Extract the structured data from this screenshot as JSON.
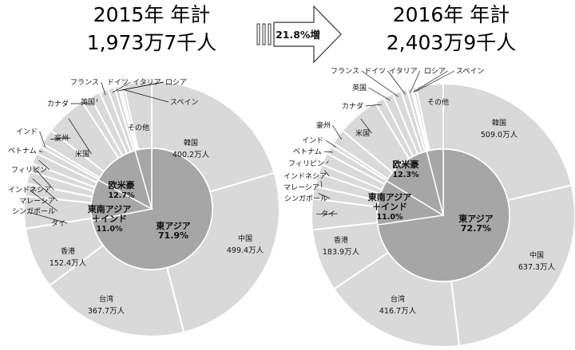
{
  "header": {
    "left_year_line": "2015年 年計",
    "left_total_line": "1,973万7千人",
    "right_year_line": "2016年 年計",
    "right_total_line": "2,403万9千人",
    "arrow_label": "21.8%増"
  },
  "chart_data": [
    {
      "type": "pie",
      "title": "2015年 年計",
      "subtitle": "1,973万7千人",
      "outer_ring": {
        "start": "top",
        "direction": "clockwise",
        "slices": [
          {
            "label": "韓国",
            "value": 400.2,
            "value_label": "400.2万人"
          },
          {
            "label": "中国",
            "value": 499.4,
            "value_label": "499.4万人"
          },
          {
            "label": "台湾",
            "value": 367.7,
            "value_label": "367.7万人"
          },
          {
            "label": "香港",
            "value": 152.4,
            "value_label": "152.4万人"
          },
          {
            "label": "タイ",
            "value": 79.7
          },
          {
            "label": "シンガポール",
            "value": 30.9
          },
          {
            "label": "マレーシア",
            "value": 30.5
          },
          {
            "label": "インドネシア",
            "value": 20.5
          },
          {
            "label": "フィリピン",
            "value": 26.8
          },
          {
            "label": "ベトナム",
            "value": 18.5
          },
          {
            "label": "インド",
            "value": 10.3
          },
          {
            "label": "豪州",
            "value": 37.6
          },
          {
            "label": "米国",
            "value": 103.3
          },
          {
            "label": "カナダ",
            "value": 23.1
          },
          {
            "label": "英国",
            "value": 25.8
          },
          {
            "label": "フランス",
            "value": 21.4
          },
          {
            "label": "ドイツ",
            "value": 16.3
          },
          {
            "label": "イタリア",
            "value": 10.3
          },
          {
            "label": "ロシア",
            "value": 5.4
          },
          {
            "label": "スペイン",
            "value": 7.7
          },
          {
            "label": "その他",
            "value": 69.6
          }
        ]
      },
      "inner_ring": [
        {
          "label": "東アジア",
          "value": 71.9,
          "value_label": "71.9%"
        },
        {
          "label": "東南アジア\n＋インド",
          "value": 11.0,
          "value_label": "11.0%"
        },
        {
          "label": "欧米豪",
          "value": 12.7,
          "value_label": "12.7%"
        },
        {
          "label": "その他",
          "value": 4.4
        }
      ]
    },
    {
      "type": "pie",
      "title": "2016年 年計",
      "subtitle": "2,403万9千人",
      "outer_ring": {
        "start": "top",
        "direction": "clockwise",
        "slices": [
          {
            "label": "韓国",
            "value": 509.0,
            "value_label": "509.0万人"
          },
          {
            "label": "中国",
            "value": 637.3,
            "value_label": "637.3万人"
          },
          {
            "label": "台湾",
            "value": 416.7,
            "value_label": "416.7万人"
          },
          {
            "label": "香港",
            "value": 183.9,
            "value_label": "183.9万人"
          },
          {
            "label": "タイ",
            "value": 90.2
          },
          {
            "label": "シンガポール",
            "value": 36.2
          },
          {
            "label": "マレーシア",
            "value": 39.4
          },
          {
            "label": "インドネシア",
            "value": 27.1
          },
          {
            "label": "フィリピン",
            "value": 34.8
          },
          {
            "label": "ベトナム",
            "value": 23.4
          },
          {
            "label": "インド",
            "value": 12.3
          },
          {
            "label": "豪州",
            "value": 44.5
          },
          {
            "label": "米国",
            "value": 124.3
          },
          {
            "label": "カナダ",
            "value": 27.3
          },
          {
            "label": "英国",
            "value": 29.2
          },
          {
            "label": "フランス",
            "value": 25.3
          },
          {
            "label": "ドイツ",
            "value": 18.3
          },
          {
            "label": "イタリア",
            "value": 11.9
          },
          {
            "label": "ロシア",
            "value": 5.5
          },
          {
            "label": "スペイン",
            "value": 9.1
          },
          {
            "label": "その他",
            "value": 79.5
          }
        ]
      },
      "inner_ring": [
        {
          "label": "東アジア",
          "value": 72.7,
          "value_label": "72.7%"
        },
        {
          "label": "東南アジア\n＋インド",
          "value": 11.0,
          "value_label": "11.0%"
        },
        {
          "label": "欧米豪",
          "value": 12.3,
          "value_label": "12.3%"
        },
        {
          "label": "その他",
          "value": 4.0
        }
      ]
    }
  ]
}
